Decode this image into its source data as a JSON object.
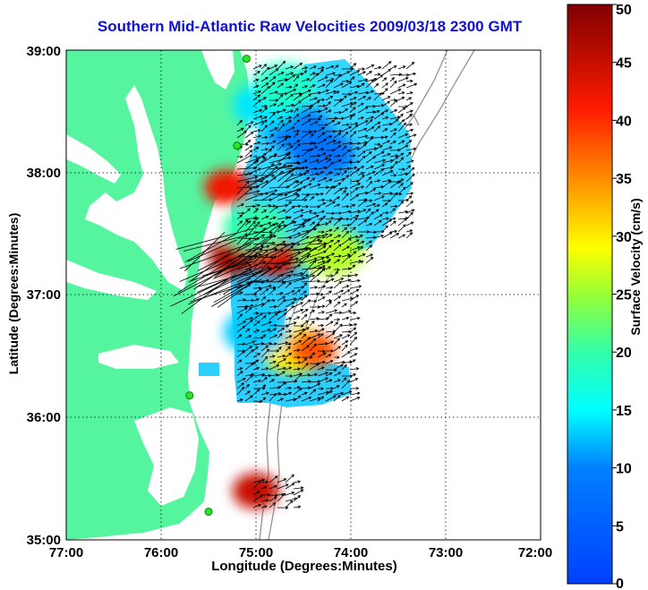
{
  "figure": {
    "title": "Southern Mid-Atlantic Raw Velocities 2009/03/18 2300 GMT",
    "xlabel": "Longitude (Degrees:Minutes)",
    "ylabel": "Latitude (Degrees:Minutes)",
    "colorbar_label": "Surface Velocity (cm/s)",
    "x_ticks": [
      "77:00",
      "76:00",
      "75:00",
      "74:00",
      "73:00",
      "72:00"
    ],
    "y_ticks": [
      "39:00",
      "38:00",
      "37:00",
      "36:00",
      "35:00"
    ],
    "colorbar_ticks": [
      "0",
      "5",
      "10",
      "15",
      "20",
      "25",
      "30",
      "35",
      "40",
      "45",
      "50"
    ]
  },
  "chart_data": {
    "type": "heatmap",
    "title": "Southern Mid-Atlantic Raw Velocities 2009/03/18 2300 GMT",
    "xlabel": "Longitude (Degrees:Minutes)",
    "ylabel": "Latitude (Degrees:Minutes)",
    "xlim": [
      -77,
      -72
    ],
    "ylim": [
      35,
      39
    ],
    "colorbar": {
      "label": "Surface Velocity (cm/s)",
      "range": [
        0,
        50
      ]
    },
    "grid": true,
    "velocity_regions": [
      {
        "lon": -74.55,
        "lat": 38.35,
        "value": 10
      },
      {
        "lon": -74.3,
        "lat": 38.15,
        "value": 8
      },
      {
        "lon": -74.9,
        "lat": 38.55,
        "value": 14
      },
      {
        "lon": -74.7,
        "lat": 38.7,
        "value": 18
      },
      {
        "lon": -75.3,
        "lat": 37.88,
        "value": 42
      },
      {
        "lon": -75.25,
        "lat": 37.3,
        "value": 47
      },
      {
        "lon": -74.8,
        "lat": 37.3,
        "value": 44
      },
      {
        "lon": -75.0,
        "lat": 37.55,
        "value": 20
      },
      {
        "lon": -74.2,
        "lat": 37.35,
        "value": 26
      },
      {
        "lon": -74.6,
        "lat": 36.55,
        "value": 30
      },
      {
        "lon": -74.4,
        "lat": 36.55,
        "value": 38
      },
      {
        "lon": -75.0,
        "lat": 36.7,
        "value": 13
      },
      {
        "lon": -75.0,
        "lat": 35.4,
        "value": 45
      }
    ],
    "stations": [
      {
        "lon": -75.1,
        "lat": 38.93
      },
      {
        "lon": -75.2,
        "lat": 38.22
      },
      {
        "lon": -75.7,
        "lat": 36.18
      },
      {
        "lon": -75.5,
        "lat": 35.23
      }
    ]
  }
}
